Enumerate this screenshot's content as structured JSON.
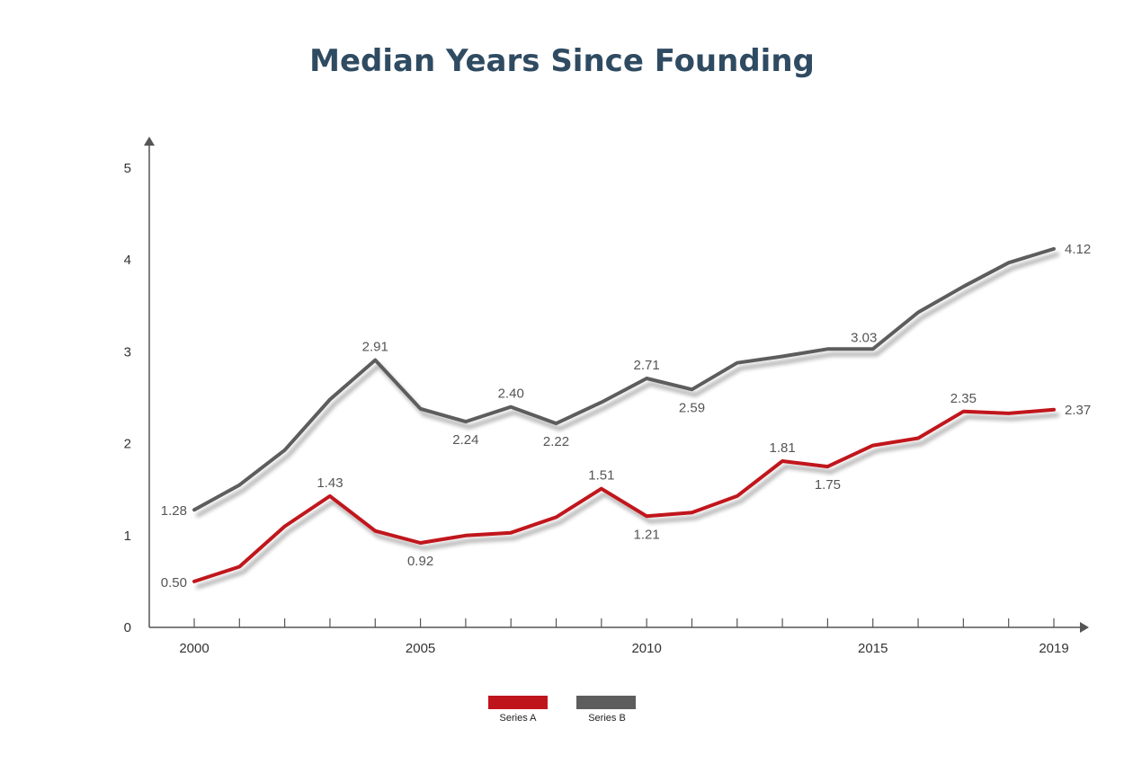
{
  "chart_data": {
    "type": "line",
    "title": "Median Years Since Founding",
    "xlabel": "",
    "ylabel": "",
    "x": [
      2000,
      2001,
      2002,
      2003,
      2004,
      2005,
      2006,
      2007,
      2008,
      2009,
      2010,
      2011,
      2012,
      2013,
      2014,
      2015,
      2016,
      2017,
      2018,
      2019
    ],
    "x_ticks": [
      "2000",
      "2005",
      "2010",
      "2015",
      "2019"
    ],
    "y_ticks": [
      "0",
      "1",
      "2",
      "3",
      "4",
      "5"
    ],
    "ylim": [
      0,
      5
    ],
    "xlim": [
      2000,
      2019
    ],
    "grid": false,
    "legend_position": "bottom-center",
    "series": [
      {
        "name": "Series A",
        "color": "#c0141d",
        "values": [
          0.5,
          0.66,
          1.1,
          1.43,
          1.05,
          0.92,
          1.0,
          1.03,
          1.2,
          1.51,
          1.21,
          1.25,
          1.43,
          1.81,
          1.75,
          1.98,
          2.06,
          2.35,
          2.33,
          2.37
        ],
        "labels": [
          {
            "x": 2000,
            "text": "0.50",
            "pos": "left"
          },
          {
            "x": 2003,
            "text": "1.43",
            "pos": "above"
          },
          {
            "x": 2005,
            "text": "0.92",
            "pos": "below"
          },
          {
            "x": 2009,
            "text": "1.51",
            "pos": "above"
          },
          {
            "x": 2010,
            "text": "1.21",
            "pos": "below"
          },
          {
            "x": 2013,
            "text": "1.81",
            "pos": "above"
          },
          {
            "x": 2014,
            "text": "1.75",
            "pos": "below"
          },
          {
            "x": 2017,
            "text": "2.35",
            "pos": "above"
          },
          {
            "x": 2019,
            "text": "2.37",
            "pos": "right"
          }
        ]
      },
      {
        "name": "Series B",
        "color": "#5d5d5d",
        "values": [
          1.28,
          1.55,
          1.93,
          2.48,
          2.91,
          2.38,
          2.24,
          2.4,
          2.22,
          2.45,
          2.71,
          2.59,
          2.88,
          2.95,
          3.03,
          3.03,
          3.43,
          3.71,
          3.97,
          4.12
        ],
        "labels": [
          {
            "x": 2000,
            "text": "1.28",
            "pos": "left"
          },
          {
            "x": 2004,
            "text": "2.91",
            "pos": "above"
          },
          {
            "x": 2006,
            "text": "2.24",
            "pos": "below"
          },
          {
            "x": 2007,
            "text": "2.40",
            "pos": "above"
          },
          {
            "x": 2008,
            "text": "2.22",
            "pos": "below"
          },
          {
            "x": 2010,
            "text": "2.71",
            "pos": "above"
          },
          {
            "x": 2011,
            "text": "2.59",
            "pos": "below"
          },
          {
            "x": 2015,
            "text": "3.03",
            "pos": "aboveleft"
          },
          {
            "x": 2019,
            "text": "4.12",
            "pos": "right"
          }
        ]
      }
    ]
  }
}
